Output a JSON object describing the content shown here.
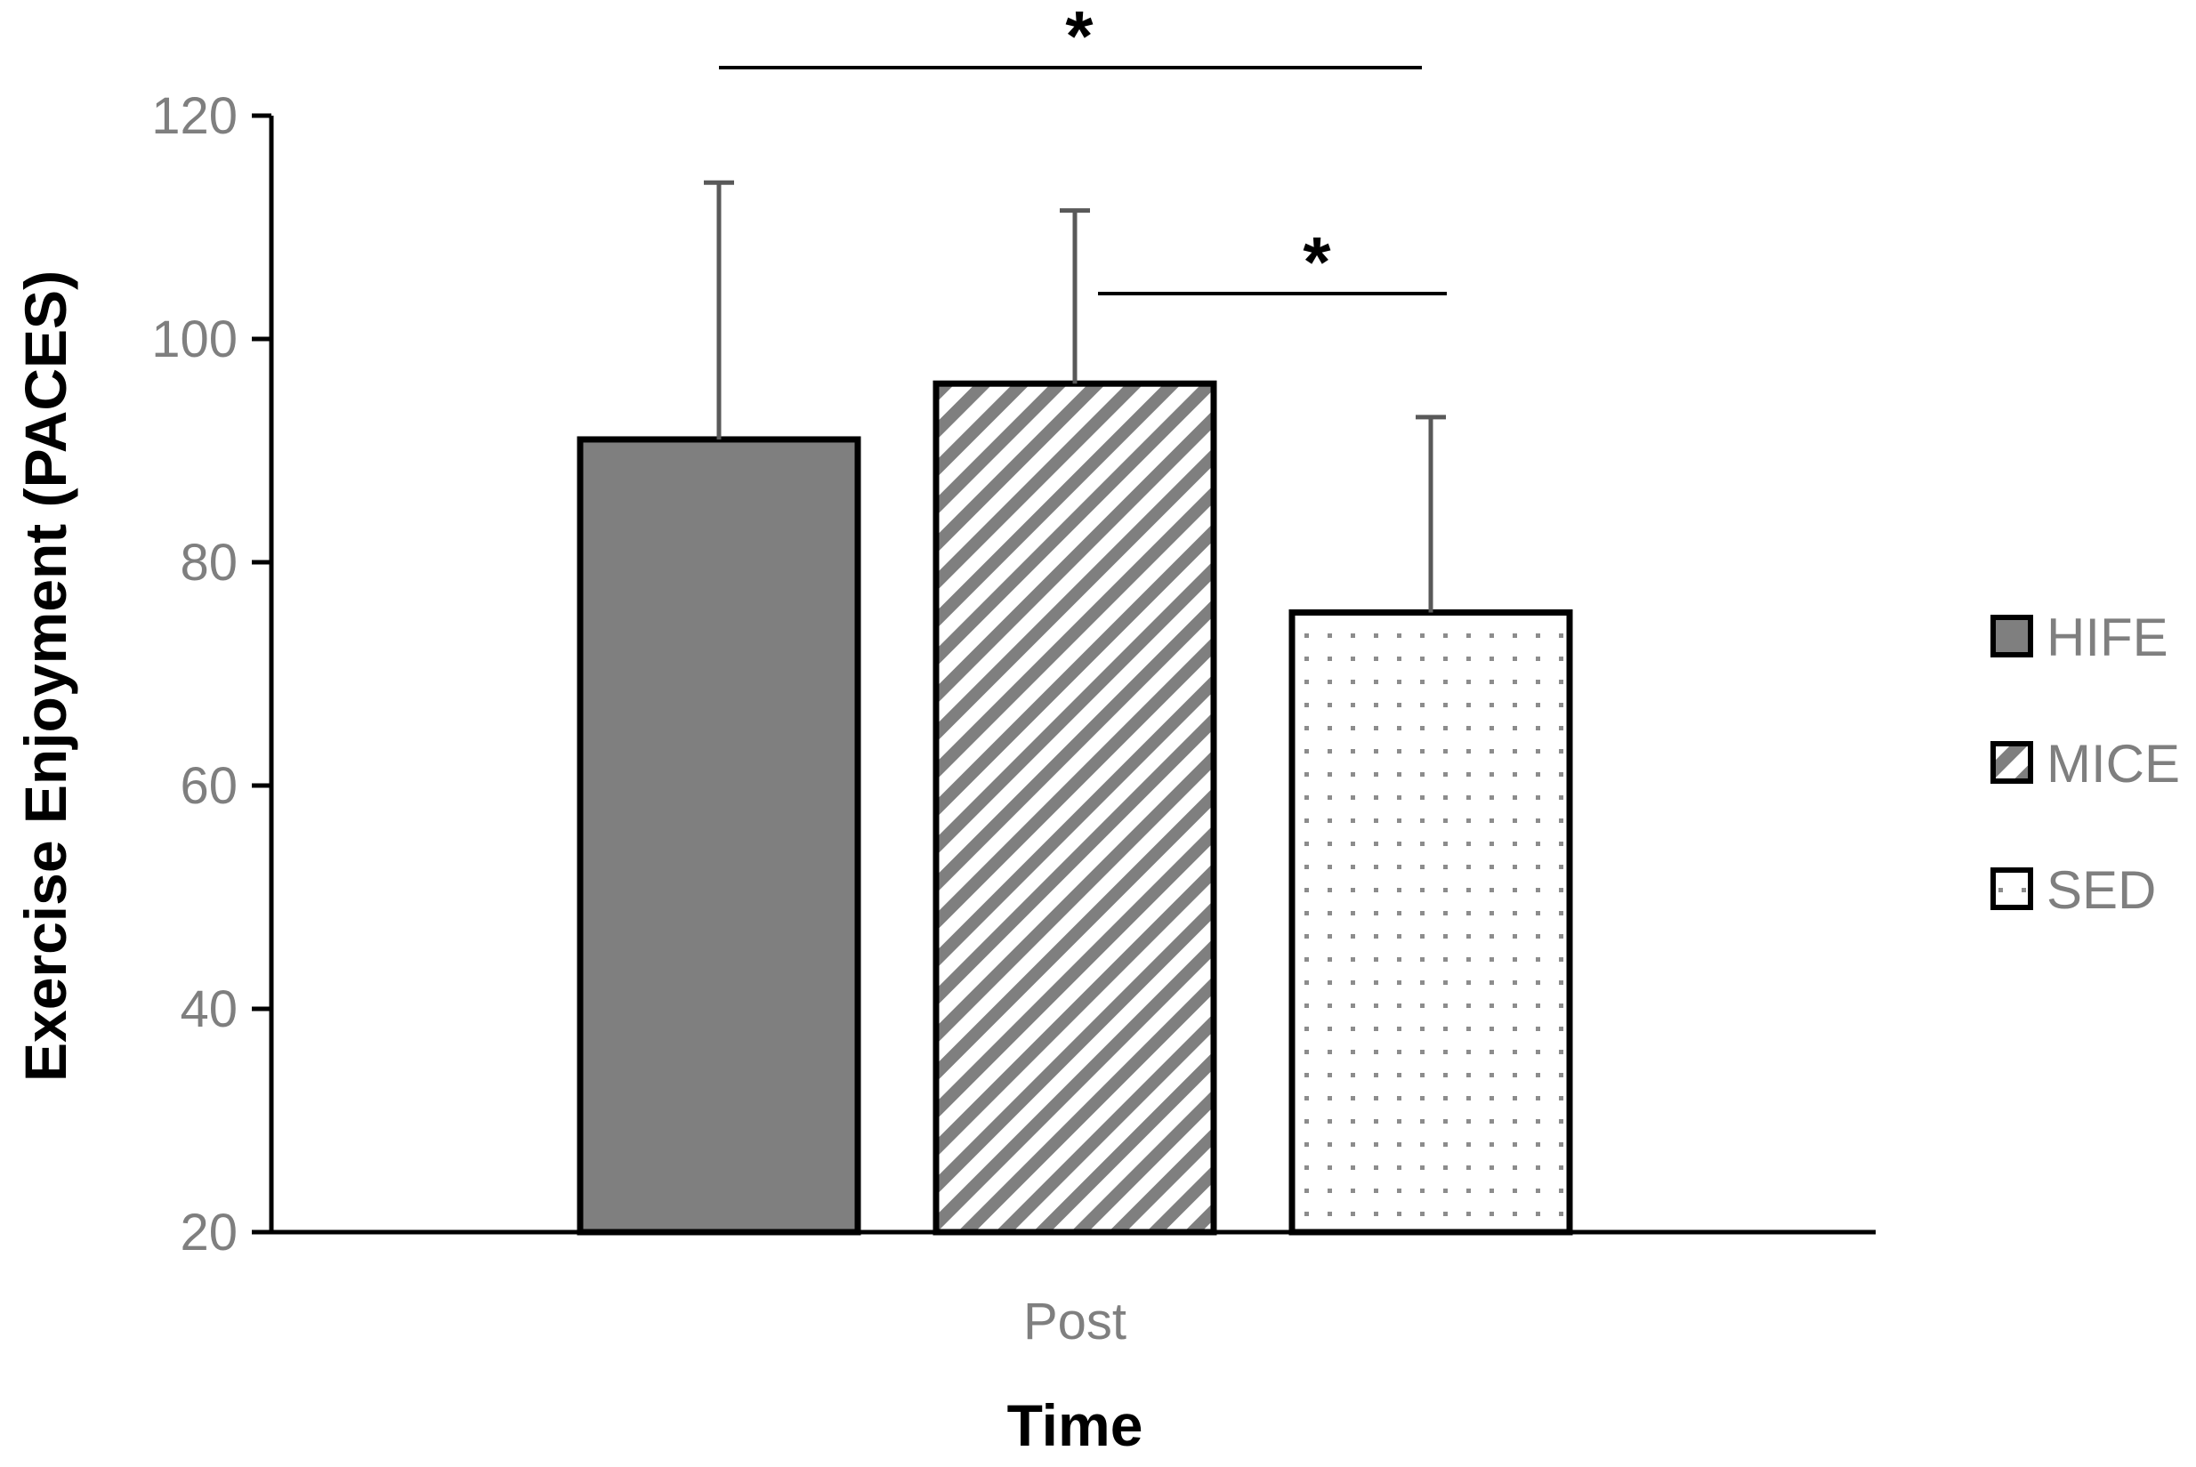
{
  "chart_data": {
    "type": "bar",
    "categories": [
      "Post"
    ],
    "series": [
      {
        "name": "HIFE",
        "values": [
          91
        ],
        "error": [
          23
        ],
        "fill": "#7f7f7f",
        "pattern": "solid"
      },
      {
        "name": "MICE",
        "values": [
          96
        ],
        "error": [
          15.5
        ],
        "fill": "#7f7f7f",
        "pattern": "diagonal-stripes"
      },
      {
        "name": "SED",
        "values": [
          75.5
        ],
        "error": [
          17.5
        ],
        "fill": "#7f7f7f",
        "pattern": "dots"
      }
    ],
    "xlabel": "Time",
    "ylabel": "Exercise Enjoyment (PACES)",
    "ylim": [
      20,
      120
    ],
    "yticks": [
      "20",
      "40",
      "60",
      "80",
      "100",
      "120"
    ],
    "grid": false,
    "legend_position": "right",
    "significance": [
      {
        "from": "HIFE",
        "to": "SED",
        "label": "*"
      },
      {
        "from": "MICE",
        "to": "SED",
        "label": "*"
      }
    ],
    "colors": {
      "axis": "#000000",
      "tick_text": "#7f7f7f",
      "error_bar": "#595959"
    }
  }
}
